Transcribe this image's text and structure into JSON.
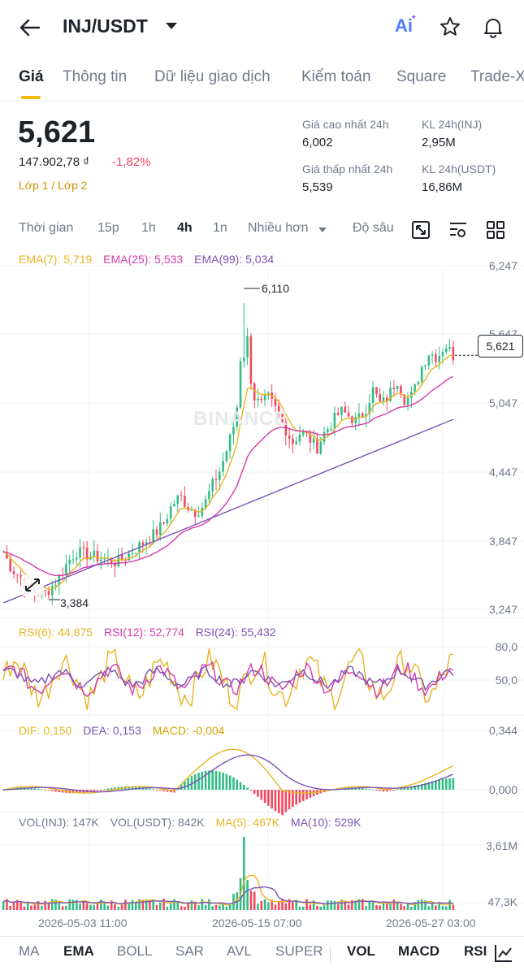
{
  "header": {
    "pair": "INJ/USDT",
    "ai_label": "Ai"
  },
  "tabs": [
    {
      "label": "Giá"
    },
    {
      "label": "Thông tin"
    },
    {
      "label": "Dữ liệu giao dịch"
    },
    {
      "label": "Kiểm toán"
    },
    {
      "label": "Square"
    },
    {
      "label": "Trade-X"
    }
  ],
  "ticker": {
    "price": "5,621",
    "fiat": "147.902,78 ₫",
    "change": "-1,82%",
    "layer": "Lớp 1 / Lớp 2",
    "high_label": "Giá cao nhất 24h",
    "high_value": "6,002",
    "low_label": "Giá thấp nhất 24h",
    "low_value": "5,539",
    "vol_base_label": "KL 24h(INJ)",
    "vol_base_value": "2,95M",
    "vol_quote_label": "KL 24h(USDT)",
    "vol_quote_value": "16,86M"
  },
  "intervals": [
    {
      "label": "Thời gian"
    },
    {
      "label": "15p"
    },
    {
      "label": "1h"
    },
    {
      "label": "4h"
    },
    {
      "label": "1n"
    },
    {
      "label": "Nhiều hơn"
    },
    {
      "label": "Độ sâu"
    }
  ],
  "chart_data": {
    "type": "candlestick",
    "watermark": "BINANCE",
    "price_axis": [
      "6,247",
      "5,647",
      "5,047",
      "4,447",
      "3,847",
      "3,247"
    ],
    "high_marker": "6,110",
    "low_marker": "3,384",
    "current_price": "5,621",
    "ema_legend": {
      "ema7": "EMA(7): 5,719",
      "ema25": "EMA(25): 5,533",
      "ema99": "EMA(99): 5,034"
    },
    "rsi_legend": {
      "rsi6": "RSI(6): 44,875",
      "rsi12": "RSI(12): 52,774",
      "rsi24": "RSI(24): 55,432"
    },
    "rsi_axis": [
      "80,0",
      "50,0"
    ],
    "macd_legend": {
      "dif": "DIF: 0,150",
      "dea": "DEA: 0,153",
      "macd": "MACD: -0,004"
    },
    "macd_axis": [
      "0,344",
      "0,000"
    ],
    "vol_legend": {
      "vol_base": "VOL(INJ): 147K",
      "vol_quote": "VOL(USDT): 842K",
      "ma5": "MA(5): 467K",
      "ma10": "MA(10): 529K"
    },
    "vol_axis": [
      "3,61M",
      "47,3K"
    ],
    "dates": [
      "2026-05-03 11:00",
      "2026-05-15 07:00",
      "2026-05-27 03:00"
    ],
    "price_range": [
      3.247,
      6.247
    ],
    "close_path": [
      3.78,
      3.62,
      3.55,
      3.45,
      3.4,
      3.38,
      3.45,
      3.55,
      3.68,
      3.78,
      3.76,
      3.74,
      3.72,
      3.7,
      3.68,
      3.72,
      3.78,
      3.84,
      3.9,
      3.96,
      4.05,
      4.22,
      4.3,
      4.2,
      4.15,
      4.22,
      4.4,
      4.55,
      4.78,
      5.05,
      6.1,
      5.25,
      5.15,
      5.22,
      5.1,
      4.95,
      4.8,
      4.9,
      4.85,
      4.75,
      4.9,
      5.0,
      5.1,
      5.05,
      5.0,
      5.1,
      5.3,
      5.15,
      5.25,
      5.4,
      5.2,
      5.25,
      5.5,
      5.65,
      5.6,
      5.72,
      5.62
    ],
    "colors": {
      "up": "#2ebd85",
      "down": "#f6465d",
      "ema7": "#e6b422",
      "ema25": "#d63aa9",
      "ema99": "#7b55b5"
    }
  },
  "indicators": [
    {
      "label": "MA"
    },
    {
      "label": "EMA"
    },
    {
      "label": "BOLL"
    },
    {
      "label": "SAR"
    },
    {
      "label": "AVL"
    },
    {
      "label": "SUPER"
    },
    {
      "label": "VOL"
    },
    {
      "label": "MACD"
    },
    {
      "label": "RSI"
    }
  ]
}
